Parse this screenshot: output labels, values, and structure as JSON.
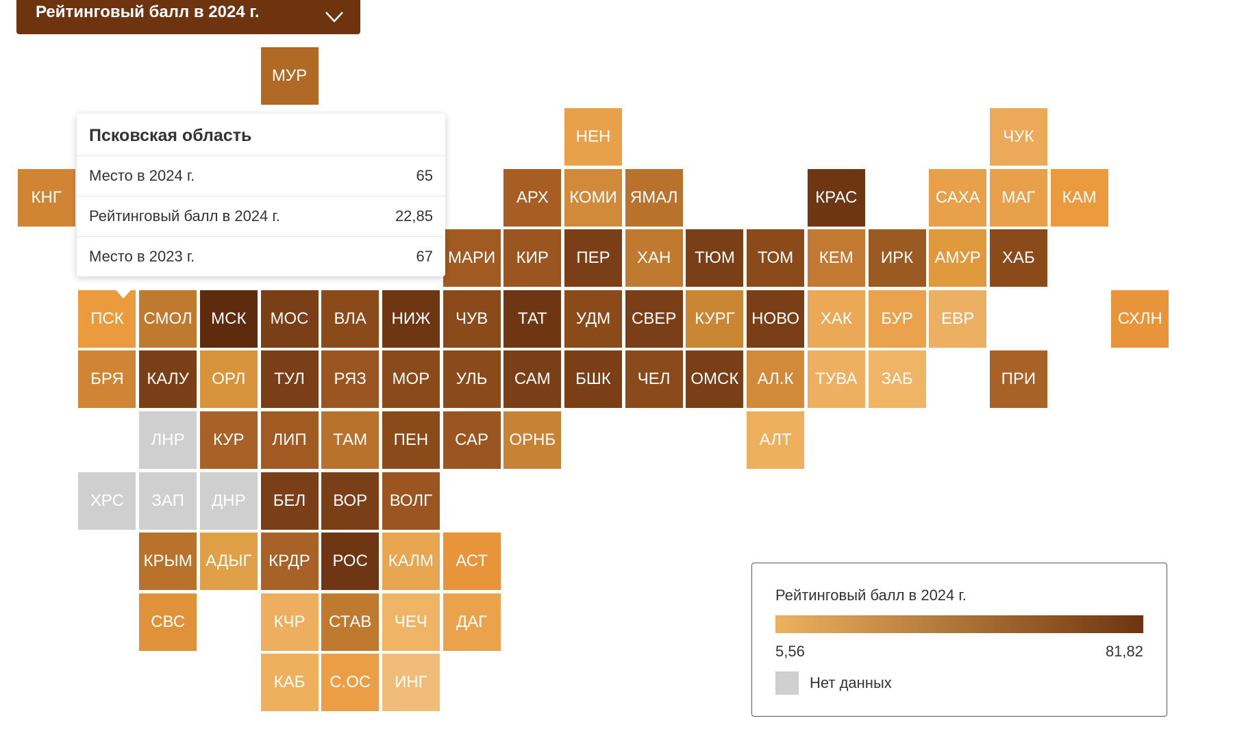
{
  "dropdown": {
    "label": "Рейтинговый балл в 2024 г."
  },
  "tiles": [
    {
      "label": "МУР",
      "color": "#b06a25"
    },
    {
      "label": "НЕН",
      "color": "#e8a04a"
    },
    {
      "label": "ЧУК",
      "color": "#eda95a"
    },
    {
      "label": "КНГ",
      "color": "#d08535"
    },
    {
      "label": "АРХ",
      "color": "#a85e22"
    },
    {
      "label": "КОМИ",
      "color": "#d08a3a"
    },
    {
      "label": "ЯМАЛ",
      "color": "#b8722c"
    },
    {
      "label": "КРАС",
      "color": "#6e3613"
    },
    {
      "label": "САХА",
      "color": "#e8a04a"
    },
    {
      "label": "МАГ",
      "color": "#e8a04a"
    },
    {
      "label": "КАМ",
      "color": "#eb9a3d"
    },
    {
      "label": "МАРИ",
      "color": "#a05a22"
    },
    {
      "label": "КИР",
      "color": "#9a5520"
    },
    {
      "label": "ПЕР",
      "color": "#7a3f16"
    },
    {
      "label": "ХАН",
      "color": "#c07a30"
    },
    {
      "label": "ТЮМ",
      "color": "#7a3f16"
    },
    {
      "label": "ТОМ",
      "color": "#8a4a1a"
    },
    {
      "label": "КЕМ",
      "color": "#c27a32"
    },
    {
      "label": "ИРК",
      "color": "#9a5a22"
    },
    {
      "label": "АМУР",
      "color": "#e09a3d"
    },
    {
      "label": "ХАБ",
      "color": "#8a4a1a"
    },
    {
      "label": "ПСК",
      "color": "#eb9a3d"
    },
    {
      "label": "СМОЛ",
      "color": "#c07a30"
    },
    {
      "label": "МСК",
      "color": "#5e2b0e"
    },
    {
      "label": "МОС",
      "color": "#7a3f16"
    },
    {
      "label": "ВЛА",
      "color": "#8a4a1a"
    },
    {
      "label": "НИЖ",
      "color": "#6e3613"
    },
    {
      "label": "ЧУВ",
      "color": "#8a4a1a"
    },
    {
      "label": "ТАТ",
      "color": "#6e3613"
    },
    {
      "label": "УДМ",
      "color": "#8a4a1a"
    },
    {
      "label": "СВЕР",
      "color": "#7a3f16"
    },
    {
      "label": "КУРГ",
      "color": "#c98633"
    },
    {
      "label": "НОВО",
      "color": "#7a3f16"
    },
    {
      "label": "ХАК",
      "color": "#eba856"
    },
    {
      "label": "БУР",
      "color": "#eba24c"
    },
    {
      "label": "ЕВР",
      "color": "#ecb062"
    },
    {
      "label": "СХЛН",
      "color": "#e8943a"
    },
    {
      "label": "БРЯ",
      "color": "#d08535"
    },
    {
      "label": "КАЛУ",
      "color": "#7a3f16"
    },
    {
      "label": "ОРЛ",
      "color": "#d8943a"
    },
    {
      "label": "ТУЛ",
      "color": "#7a3f16"
    },
    {
      "label": "РЯЗ",
      "color": "#9a5520"
    },
    {
      "label": "МОР",
      "color": "#8a4a1a"
    },
    {
      "label": "УЛЬ",
      "color": "#8a4a1a"
    },
    {
      "label": "САМ",
      "color": "#7a3f16"
    },
    {
      "label": "БШК",
      "color": "#7a3f16"
    },
    {
      "label": "ЧЕЛ",
      "color": "#8a4a1a"
    },
    {
      "label": "ОМСК",
      "color": "#7a3f16"
    },
    {
      "label": "АЛ.К",
      "color": "#d08a3a"
    },
    {
      "label": "ТУВА",
      "color": "#eeb060"
    },
    {
      "label": "ЗАБ",
      "color": "#efb466"
    },
    {
      "label": "ПРИ",
      "color": "#a86228"
    },
    {
      "label": "ЛНР",
      "color": "#cfcfcf"
    },
    {
      "label": "КУР",
      "color": "#a86228"
    },
    {
      "label": "ЛИП",
      "color": "#a05a22"
    },
    {
      "label": "ТАМ",
      "color": "#b8722c"
    },
    {
      "label": "ПЕН",
      "color": "#8a4a1a"
    },
    {
      "label": "САР",
      "color": "#9a5520"
    },
    {
      "label": "ОРНБ",
      "color": "#c88234"
    },
    {
      "label": "АЛТ",
      "color": "#efb05e"
    },
    {
      "label": "ХРС",
      "color": "#cfcfcf"
    },
    {
      "label": "ЗАП",
      "color": "#cfcfcf"
    },
    {
      "label": "ДНР",
      "color": "#cfcfcf"
    },
    {
      "label": "БЕЛ",
      "color": "#7a3f16"
    },
    {
      "label": "ВОР",
      "color": "#7a3f16"
    },
    {
      "label": "ВОЛГ",
      "color": "#9a5520"
    },
    {
      "label": "КРЫМ",
      "color": "#b8722c"
    },
    {
      "label": "АДЫГ",
      "color": "#e0a048"
    },
    {
      "label": "КРДР",
      "color": "#a86228"
    },
    {
      "label": "РОС",
      "color": "#6e3613"
    },
    {
      "label": "КАЛМ",
      "color": "#e8a650"
    },
    {
      "label": "АСТ",
      "color": "#e8943a"
    },
    {
      "label": "СВС",
      "color": "#e0923a"
    },
    {
      "label": "КЧР",
      "color": "#eeae60"
    },
    {
      "label": "СТАВ",
      "color": "#c07a30"
    },
    {
      "label": "ЧЕЧ",
      "color": "#efb466"
    },
    {
      "label": "ДАГ",
      "color": "#eba24c"
    },
    {
      "label": "КАБ",
      "color": "#efb05e"
    },
    {
      "label": "С.ОС",
      "color": "#eb9e45"
    },
    {
      "label": "ИНГ",
      "color": "#f0bc78"
    }
  ],
  "tooltip": {
    "title": "Псковская область",
    "rows": [
      [
        "Место в 2024 г.",
        "65"
      ],
      [
        "Рейтинговый балл в 2024 г.",
        "22,85"
      ],
      [
        "Место в 2023 г.",
        "67"
      ]
    ]
  },
  "legend": {
    "title": "Рейтинговый балл в 2024 г.",
    "min": "5,56",
    "max": "81,82",
    "colors": [
      "#ecb25e",
      "#6e3410"
    ],
    "no_data": {
      "label": "Нет данных",
      "color": "#cfcfcf"
    }
  }
}
